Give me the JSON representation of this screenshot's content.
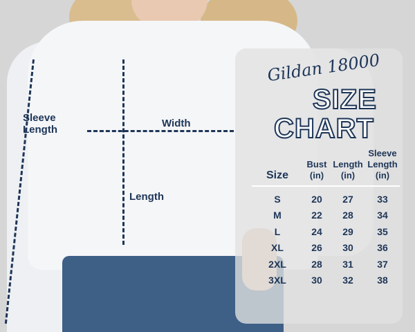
{
  "measurement_labels": {
    "sleeve_length": "Sleeve Length",
    "width": "Width",
    "length": "Length"
  },
  "chart": {
    "brand": "Gildan 18000",
    "title_line1": "SIZE",
    "title_line2": "CHART",
    "headers": [
      "Size",
      "Bust (in)",
      "Length (in)",
      "Sleeve Length (in)"
    ],
    "rows": [
      [
        "S",
        "20",
        "27",
        "33"
      ],
      [
        "M",
        "22",
        "28",
        "34"
      ],
      [
        "L",
        "24",
        "29",
        "35"
      ],
      [
        "XL",
        "26",
        "30",
        "36"
      ],
      [
        "2XL",
        "28",
        "31",
        "37"
      ],
      [
        "3XL",
        "30",
        "32",
        "38"
      ]
    ]
  },
  "colors": {
    "text": "#1d3557",
    "background": "#d6d6d6"
  }
}
